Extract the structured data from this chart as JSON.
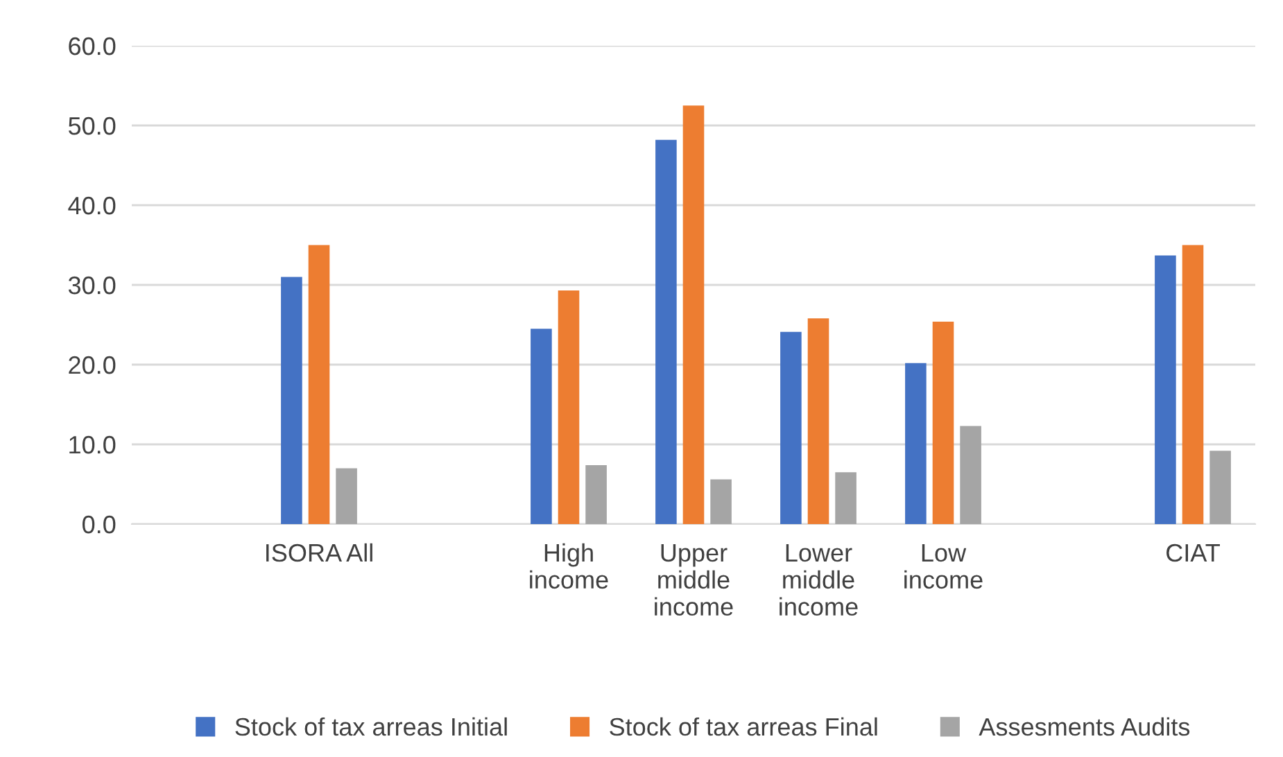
{
  "chart_data": {
    "type": "bar",
    "categories": [
      null,
      "ISORA All",
      null,
      "High\nincome",
      "Upper\nmiddle\nincome",
      "Lower\nmiddle\nincome",
      "Low\nincome",
      null,
      "CIAT"
    ],
    "series": [
      {
        "name": "Stock of tax arreas Initial",
        "color": "#4472c4",
        "values": [
          null,
          31.0,
          null,
          24.5,
          48.2,
          24.1,
          20.2,
          null,
          33.7
        ]
      },
      {
        "name": "Stock of tax arreas Final",
        "color": "#ed7d31",
        "values": [
          null,
          35.0,
          null,
          29.3,
          52.5,
          25.8,
          25.4,
          null,
          35.0
        ]
      },
      {
        "name": "Assesments Audits",
        "color": "#a5a5a5",
        "values": [
          null,
          7.0,
          null,
          7.4,
          5.6,
          6.5,
          12.3,
          null,
          9.2
        ]
      }
    ],
    "ylim": [
      0,
      60
    ],
    "yticks": [
      {
        "value": 0,
        "label": "0.0"
      },
      {
        "value": 10,
        "label": "10.0"
      },
      {
        "value": 20,
        "label": "20.0"
      },
      {
        "value": 30,
        "label": "30.0"
      },
      {
        "value": 40,
        "label": "40.0"
      },
      {
        "value": 50,
        "label": "50.0"
      },
      {
        "value": 60,
        "label": "60.0"
      }
    ],
    "grid": "y",
    "legend": "bottom"
  }
}
